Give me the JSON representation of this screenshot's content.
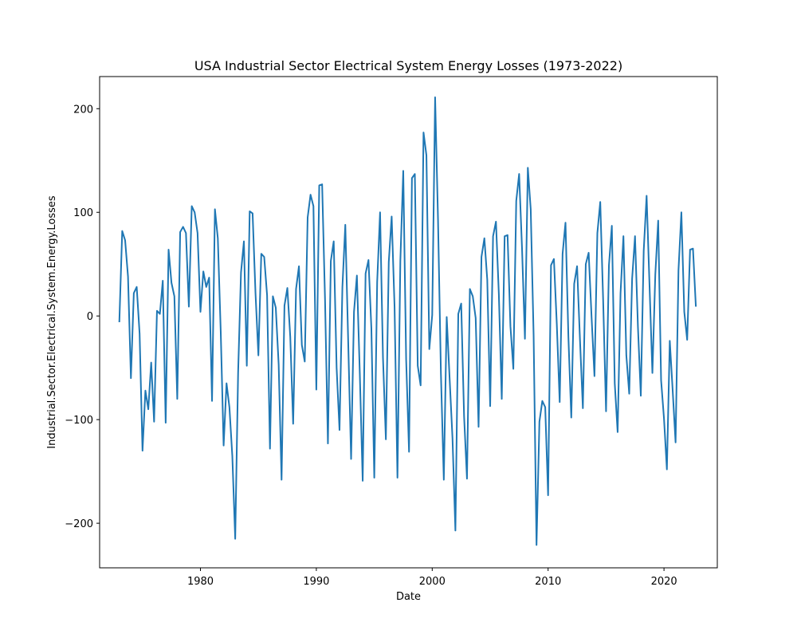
{
  "chart_data": {
    "type": "line",
    "title": "USA Industrial Sector Electrical System Energy Losses (1973-2022)",
    "xlabel": "Date",
    "ylabel": "Industrial.Sector.Electrical.System.Energy.Losses",
    "xlim": [
      1971.3,
      2024.6
    ],
    "ylim": [
      -243,
      231
    ],
    "x_ticks": [
      1980,
      1990,
      2000,
      2010,
      2020
    ],
    "y_ticks": [
      -200,
      -100,
      0,
      100,
      200
    ],
    "grid": false,
    "legend": "none",
    "series_color": "#1f77b4",
    "series": [
      {
        "x": [
          1973.0,
          1973.25,
          1973.5,
          1973.75,
          1974.0,
          1974.25,
          1974.5,
          1974.75,
          1975.0,
          1975.25,
          1975.5,
          1975.75,
          1976.0,
          1976.25,
          1976.5,
          1976.75,
          1977.0,
          1977.25,
          1977.5,
          1977.75,
          1978.0,
          1978.25,
          1978.5,
          1978.75,
          1979.0,
          1979.25,
          1979.5,
          1979.75,
          1980.0,
          1980.25,
          1980.5,
          1980.75,
          1981.0,
          1981.25,
          1981.5,
          1981.75,
          1982.0,
          1982.25,
          1982.5,
          1982.75,
          1983.0,
          1983.25,
          1983.5,
          1983.75,
          1984.0,
          1984.25,
          1984.5,
          1984.75,
          1985.0,
          1985.25,
          1985.5,
          1985.75,
          1986.0,
          1986.25,
          1986.5,
          1986.75,
          1987.0,
          1987.25,
          1987.5,
          1987.75,
          1988.0,
          1988.25,
          1988.5,
          1988.75,
          1989.0,
          1989.25,
          1989.5,
          1989.75,
          1990.0,
          1990.25,
          1990.5,
          1990.75,
          1991.0,
          1991.25,
          1991.5,
          1991.75,
          1992.0,
          1992.25,
          1992.5,
          1992.75,
          1993.0,
          1993.25,
          1993.5,
          1993.75,
          1994.0,
          1994.25,
          1994.5,
          1994.75,
          1995.0,
          1995.25,
          1995.5,
          1995.75,
          1996.0,
          1996.25,
          1996.5,
          1996.75,
          1997.0,
          1997.25,
          1997.5,
          1997.75,
          1998.0,
          1998.25,
          1998.5,
          1998.75,
          1999.0,
          1999.25,
          1999.5,
          1999.75,
          2000.0,
          2000.25,
          2000.5,
          2000.75,
          2001.0,
          2001.25,
          2001.5,
          2001.75,
          2002.0,
          2002.25,
          2002.5,
          2002.75,
          2003.0,
          2003.25,
          2003.5,
          2003.75,
          2004.0,
          2004.25,
          2004.5,
          2004.75,
          2005.0,
          2005.25,
          2005.5,
          2005.75,
          2006.0,
          2006.25,
          2006.5,
          2006.75,
          2007.0,
          2007.25,
          2007.5,
          2007.75,
          2008.0,
          2008.25,
          2008.5,
          2008.75,
          2009.0,
          2009.25,
          2009.5,
          2009.75,
          2010.0,
          2010.25,
          2010.5,
          2010.75,
          2011.0,
          2011.25,
          2011.5,
          2011.75,
          2012.0,
          2012.25,
          2012.5,
          2012.75,
          2013.0,
          2013.25,
          2013.5,
          2013.75,
          2014.0,
          2014.25,
          2014.5,
          2014.75,
          2015.0,
          2015.25,
          2015.5,
          2015.75,
          2016.0,
          2016.25,
          2016.5,
          2016.75,
          2017.0,
          2017.25,
          2017.5,
          2017.75,
          2018.0,
          2018.25,
          2018.5,
          2018.75,
          2019.0,
          2019.25,
          2019.5,
          2019.75,
          2020.0,
          2020.25,
          2020.5,
          2020.75,
          2021.0,
          2021.25,
          2021.5,
          2021.75,
          2022.0,
          2022.25,
          2022.5,
          2022.75
        ],
        "y": [
          -6,
          82,
          73,
          38,
          -60,
          22,
          28,
          -17,
          -130,
          -72,
          -90,
          -45,
          -102,
          5,
          2,
          34,
          -103,
          64,
          32,
          19,
          -80,
          81,
          86,
          80,
          9,
          106,
          100,
          80,
          4,
          43,
          28,
          37,
          -82,
          103,
          75,
          -15,
          -125,
          -65,
          -88,
          -135,
          -215,
          -55,
          42,
          72,
          -48,
          101,
          99,
          22,
          -38,
          60,
          57,
          20,
          -128,
          19,
          8,
          -47,
          -158,
          10,
          27,
          -20,
          -104,
          26,
          48,
          -28,
          -44,
          95,
          117,
          106,
          -71,
          126,
          127,
          16,
          -123,
          53,
          72,
          -50,
          -110,
          28,
          88,
          -25,
          -138,
          4,
          39,
          -55,
          -159,
          41,
          54,
          -12,
          -156,
          33,
          100,
          -40,
          -119,
          52,
          96,
          9,
          -156,
          53,
          140,
          -42,
          -131,
          133,
          137,
          -48,
          -67,
          177,
          155,
          -32,
          1,
          211,
          93,
          -55,
          -158,
          -1,
          -60,
          -118,
          -207,
          2,
          12,
          -97,
          -157,
          26,
          19,
          -2,
          -107,
          57,
          75,
          35,
          -87,
          77,
          91,
          21,
          -80,
          77,
          78,
          -10,
          -51,
          111,
          137,
          65,
          -22,
          143,
          103,
          -19,
          -221,
          -102,
          -82,
          -88,
          -173,
          49,
          55,
          -8,
          -83,
          60,
          90,
          -20,
          -98,
          31,
          48,
          -23,
          -89,
          50,
          61,
          -1,
          -58,
          80,
          110,
          15,
          -92,
          49,
          87,
          -65,
          -112,
          22,
          77,
          -38,
          -75,
          36,
          77,
          -10,
          -77,
          63,
          116,
          30,
          -55,
          40,
          92,
          -62,
          -99,
          -148,
          -24,
          -72,
          -122,
          44,
          100,
          4,
          -23,
          64,
          65,
          9
        ]
      }
    ]
  }
}
